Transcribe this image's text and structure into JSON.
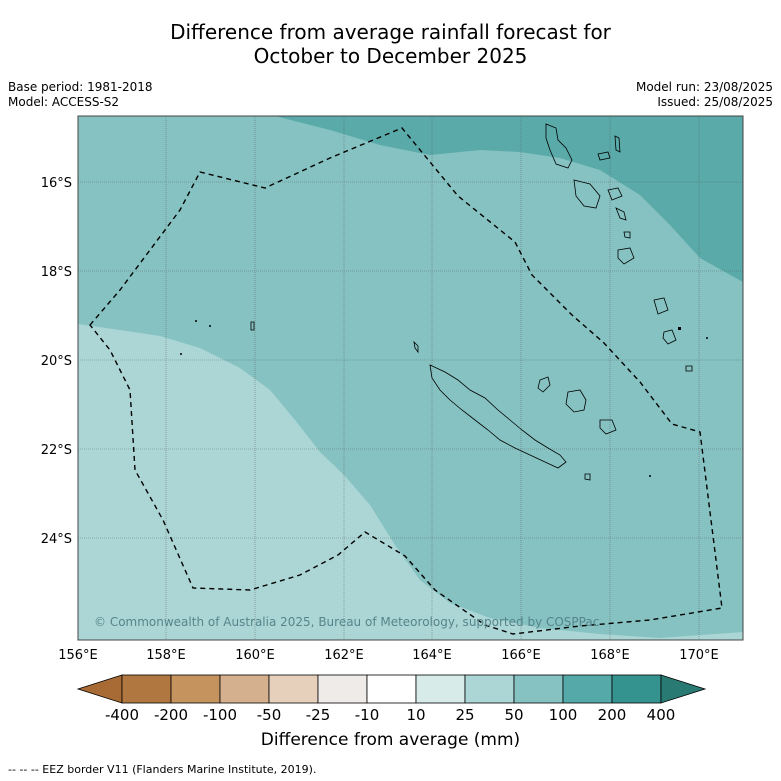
{
  "title_line1": "Difference from average rainfall forecast for",
  "title_line2": "October to December 2025",
  "meta": {
    "base_period": "Base period: 1981-2018",
    "model": "Model: ACCESS-S2",
    "model_run": "Model run: 23/08/2025",
    "issued": "Issued: 25/08/2025"
  },
  "map": {
    "lat_labels": [
      "16°S",
      "18°S",
      "20°S",
      "22°S",
      "24°S"
    ],
    "lon_labels": [
      "156°E",
      "158°E",
      "160°E",
      "162°E",
      "164°E",
      "166°E",
      "168°E",
      "170°E"
    ],
    "copyright": "© Commonwealth of Australia 2025, Bureau of Meteorology, supported by COSPPac"
  },
  "colorbar": {
    "title": "Difference from average (mm)",
    "tick_labels": [
      "-400",
      "-200",
      "-100",
      "-50",
      "-25",
      "-10",
      "10",
      "25",
      "50",
      "100",
      "200",
      "400"
    ],
    "colors": [
      "#a86b36",
      "#b07840",
      "#c4935e",
      "#d4b08e",
      "#e6d0bc",
      "#efebe8",
      "#ffffff",
      "#d7ebe9",
      "#acd6d6",
      "#85c2c1",
      "#56a9a9",
      "#34938f",
      "#2a7a74"
    ]
  },
  "footer": "--  --  -- EEZ border V11 (Flanders Marine Institute, 2019)."
}
